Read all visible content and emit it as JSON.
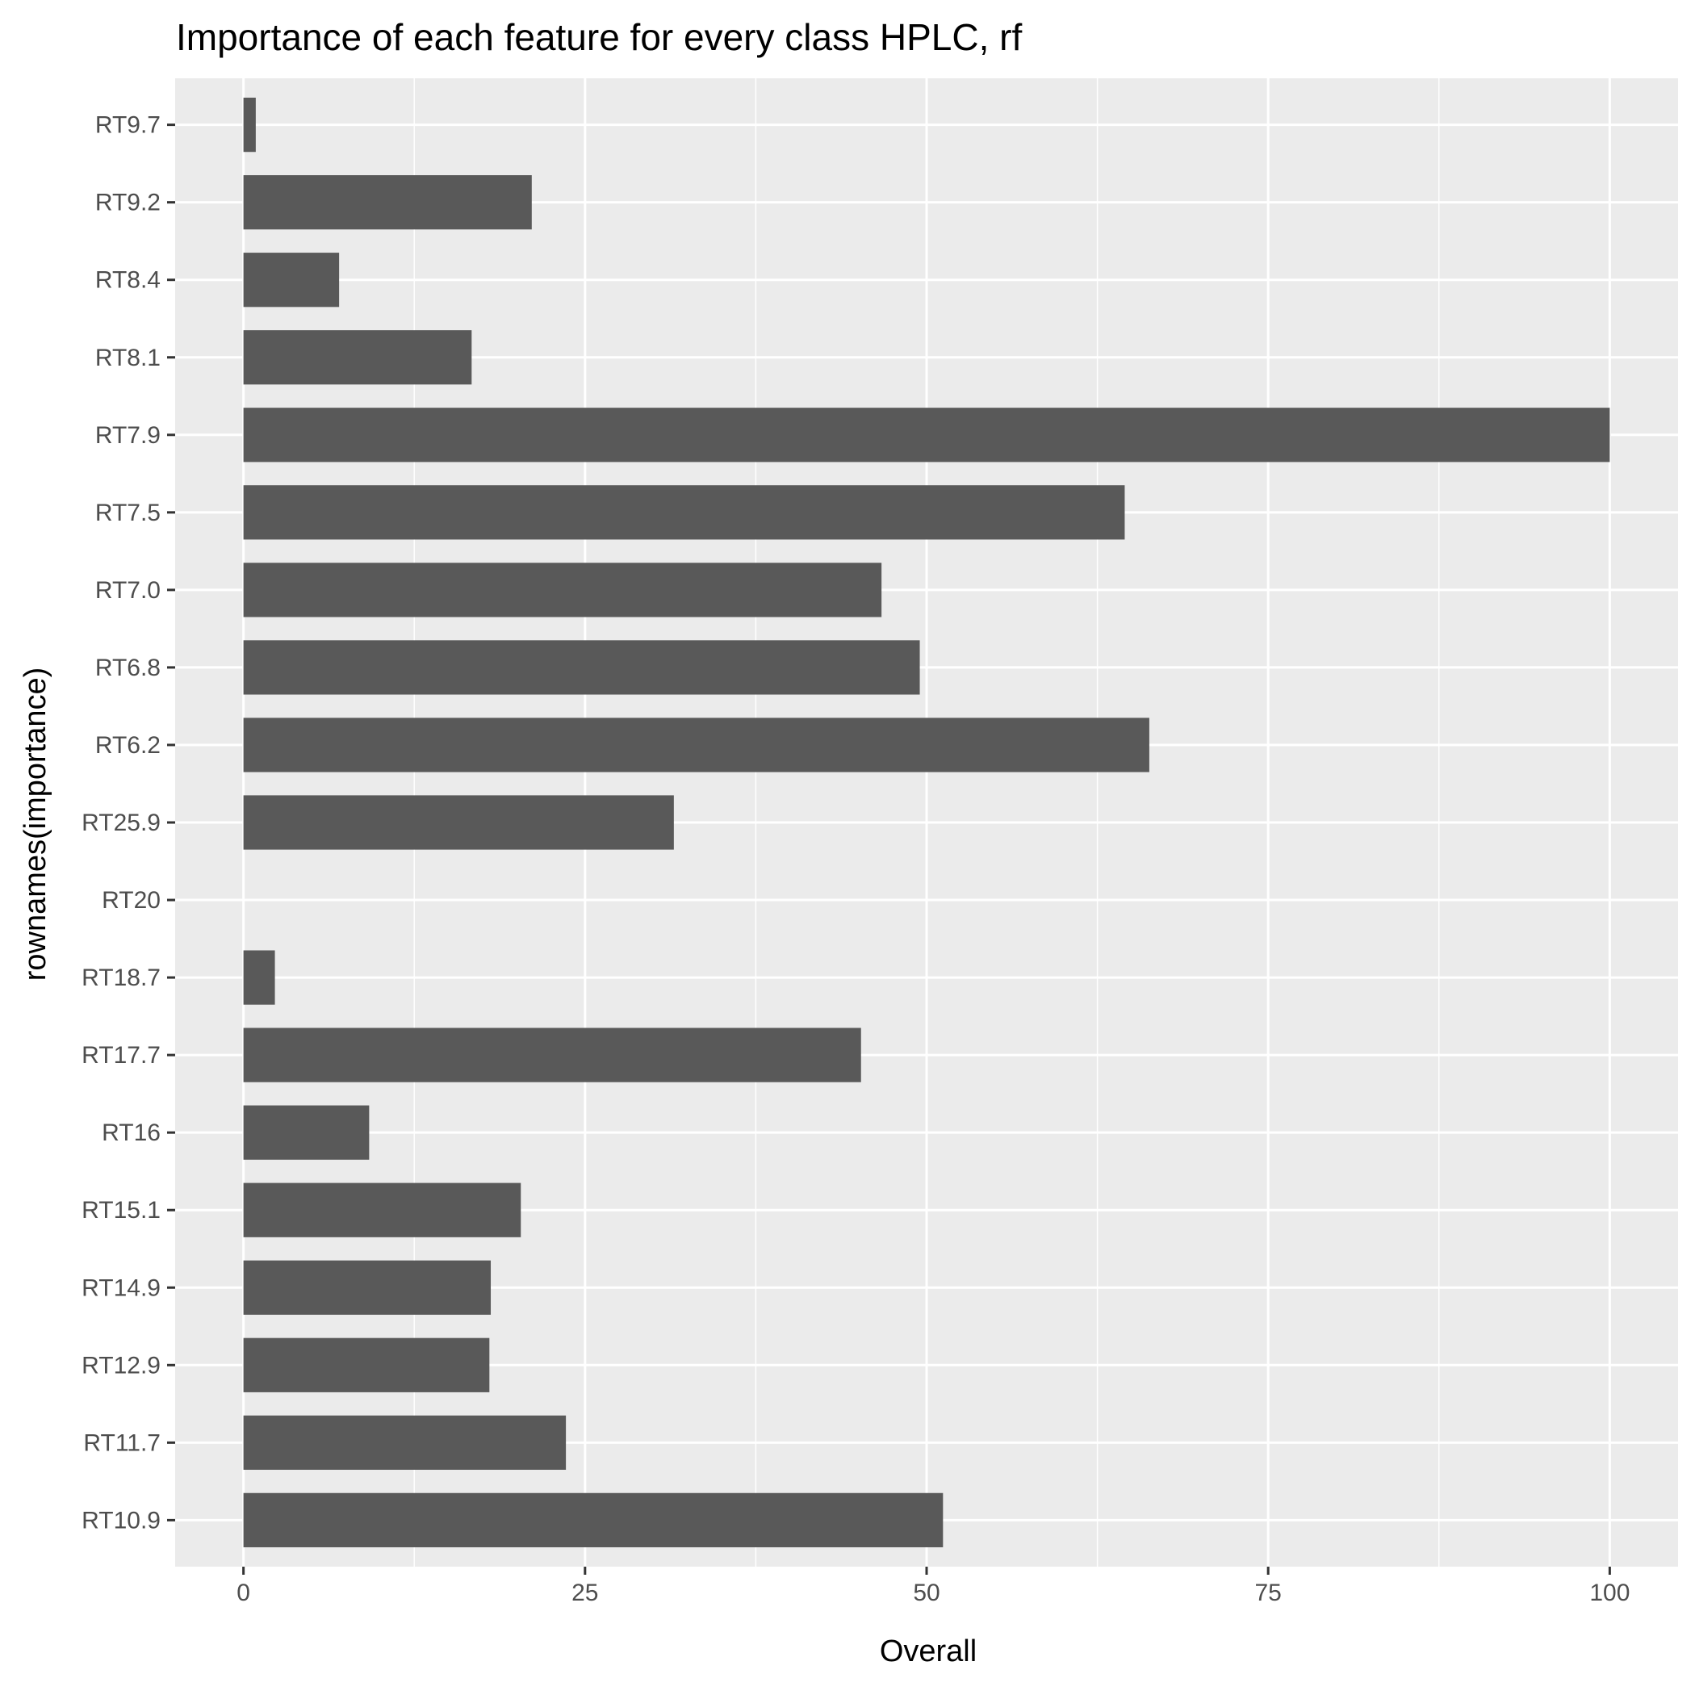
{
  "chart_data": {
    "type": "bar",
    "orientation": "horizontal",
    "title": "Importance of each feature for every class HPLC, rf",
    "xlabel": "Overall",
    "ylabel": "rownames(importance)",
    "categories": [
      "RT9.7",
      "RT9.2",
      "RT8.4",
      "RT8.1",
      "RT7.9",
      "RT7.5",
      "RT7.0",
      "RT6.8",
      "RT6.2",
      "RT25.9",
      "RT20",
      "RT18.7",
      "RT17.7",
      "RT16",
      "RT15.1",
      "RT14.9",
      "RT12.9",
      "RT11.7",
      "RT10.9"
    ],
    "values": [
      0.9,
      21.1,
      7.0,
      16.7,
      100.0,
      64.5,
      46.7,
      49.5,
      66.3,
      31.5,
      0.0,
      2.3,
      45.2,
      9.2,
      20.3,
      18.1,
      18.0,
      23.6,
      51.2
    ],
    "xlim": [
      -5,
      105
    ],
    "xticks": [
      0,
      25,
      50,
      75,
      100
    ],
    "grid": true,
    "bar_color": "#595959",
    "panel_color": "#ebebeb",
    "legend": "none"
  }
}
